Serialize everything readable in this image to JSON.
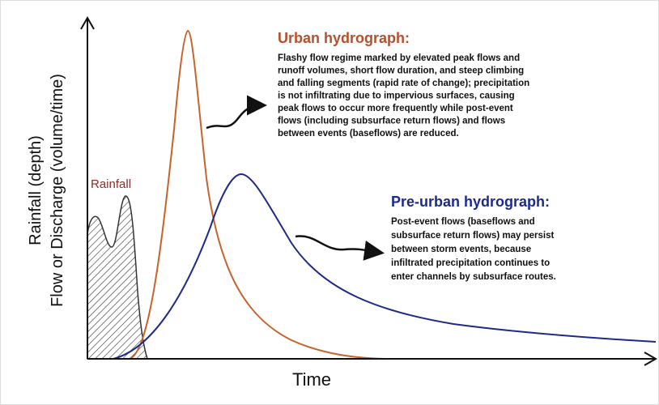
{
  "y_axis": {
    "label_lines": [
      "Rainfall (depth)",
      "Flow or Discharge (volume/time)"
    ]
  },
  "x_axis": {
    "label": "Time"
  },
  "rainfall_label": "Rainfall",
  "urban": {
    "title": "Urban hydrograph:",
    "lines": [
      "Flashy flow regime marked by elevated peak flows and",
      "runoff volumes, short flow duration, and steep climbing",
      "and falling segments (rapid rate of change); precipitation",
      "is not infiltrating due to impervious surfaces, causing",
      "peak flows to occur more frequently while post-event",
      "flows (including subsurface return flows) and flows",
      "between events (baseflows) are reduced."
    ]
  },
  "pre_urban": {
    "title": "Pre-urban hydrograph:",
    "lines": [
      "Post-event flows (baseflows and",
      "subsurface return flows) may persist",
      "between storm events, because",
      "infiltrated precipitation continues to",
      "enter channels by subsurface routes."
    ]
  }
}
